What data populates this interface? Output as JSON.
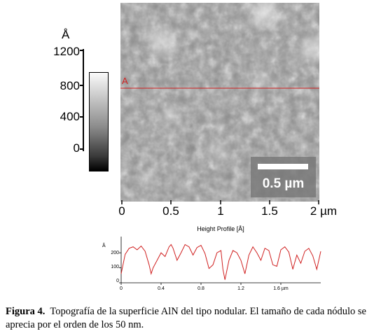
{
  "afm_image": {
    "marker_label": "A",
    "scale_bar_label": "0.5 µm"
  },
  "colorbar": {
    "unit": "Å",
    "ticks": [
      "1200",
      "800",
      "400",
      "0"
    ]
  },
  "x_axis": {
    "ticks": [
      "0",
      "0.5",
      "1",
      "1.5",
      "2 µm"
    ]
  },
  "profile": {
    "title": "Height Profile [Å]",
    "unit": "Å",
    "y_ticks": [
      "200",
      "100",
      "0"
    ],
    "x_ticks": [
      "0",
      "0.4",
      "0.8",
      "1.2",
      "1.6 µm"
    ]
  },
  "chart_data": {
    "type": "line",
    "title": "Height Profile [Å]",
    "xlabel": "µm",
    "ylabel": "Å",
    "xlim": [
      0,
      2.0
    ],
    "ylim": [
      0,
      280
    ],
    "series": [
      {
        "x": [
          0,
          0.04,
          0.08,
          0.12,
          0.16,
          0.2,
          0.24,
          0.28,
          0.3,
          0.32,
          0.36,
          0.4,
          0.44,
          0.48,
          0.5,
          0.52,
          0.56,
          0.6,
          0.64,
          0.68,
          0.72,
          0.76,
          0.8,
          0.84,
          0.88,
          0.92,
          0.96,
          1.0,
          1.02,
          1.04,
          1.08,
          1.12,
          1.16,
          1.2,
          1.24,
          1.28,
          1.32,
          1.36,
          1.4,
          1.44,
          1.48,
          1.52,
          1.56,
          1.6,
          1.64,
          1.68,
          1.72,
          1.76,
          1.8,
          1.84,
          1.88,
          1.92,
          1.96,
          2.0
        ],
        "y": [
          60,
          190,
          230,
          240,
          220,
          245,
          210,
          120,
          60,
          100,
          150,
          200,
          175,
          240,
          255,
          230,
          150,
          200,
          255,
          240,
          185,
          235,
          250,
          195,
          95,
          120,
          200,
          215,
          90,
          20,
          150,
          215,
          200,
          150,
          60,
          185,
          240,
          200,
          150,
          230,
          215,
          120,
          110,
          220,
          240,
          205,
          90,
          185,
          130,
          210,
          230,
          180,
          90,
          210
        ]
      }
    ]
  },
  "caption": {
    "label": "Figura 4.",
    "text": "Topografía de la superficie AlN del tipo nodular. El tamaño de cada nódulo se aprecia por el orden de los 50 nm."
  }
}
